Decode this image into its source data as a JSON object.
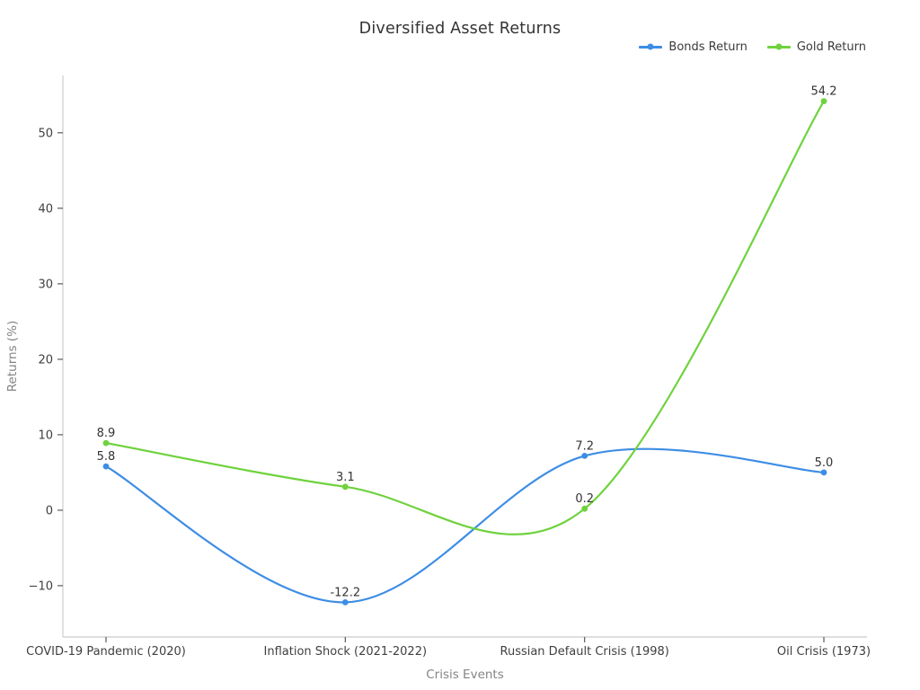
{
  "chart_data": {
    "type": "line",
    "title": "Diversified Asset Returns",
    "xlabel": "Crisis Events",
    "ylabel": "Returns (%)",
    "categories": [
      "COVID-19 Pandemic (2020)",
      "Inflation Shock (2021-2022)",
      "Russian Default Crisis (1998)",
      "Oil Crisis (1973)"
    ],
    "series": [
      {
        "name": "Bonds Return",
        "color": "#3d8de4",
        "values": [
          5.8,
          -12.2,
          7.2,
          5.0
        ]
      },
      {
        "name": "Gold Return",
        "color": "#6fd23e",
        "values": [
          8.9,
          3.1,
          0.2,
          54.2
        ]
      }
    ],
    "yticks": [
      -10,
      0,
      10,
      20,
      30,
      40,
      50
    ],
    "ylim": [
      -16.8,
      57.6
    ],
    "grid": false,
    "curve": "smooth",
    "legend_position": "top-right",
    "data_labels": true,
    "colors": {
      "spine": "#d4d4d4",
      "tick": "#4a4a4a",
      "tick_label": "#3f3f3f",
      "axis_title": "#848484",
      "title": "#333333",
      "data_label": "#333333"
    }
  }
}
